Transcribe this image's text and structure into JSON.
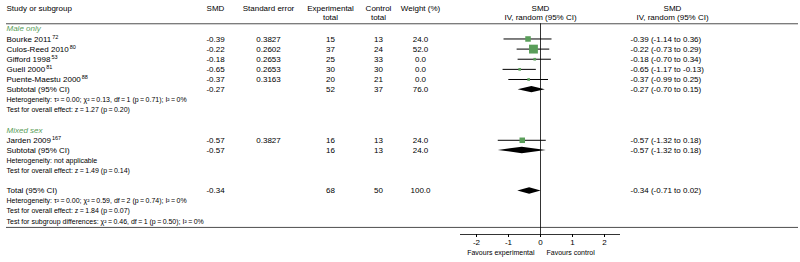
{
  "chart_data": {
    "type": "forest",
    "headers": [
      [
        "Study or subgroup"
      ],
      [
        "SMD"
      ],
      [
        "Standard error"
      ],
      [
        "Experimental",
        "total"
      ],
      [
        "Control",
        "total"
      ],
      [
        "Weight (%)"
      ],
      [
        "SMD",
        "IV, random (95% CI)"
      ],
      [
        "SMD",
        "IV, random (95% CI)"
      ]
    ],
    "color": "#5a9e5a",
    "subgroups": [
      {
        "name": "Male only",
        "color": "#5a9e5a",
        "studies": [
          {
            "name": "Bourke 2011",
            "superscript": "72",
            "smd": -0.39,
            "smd_label": "-0.39",
            "se": 0.3827,
            "exp_total": 15,
            "ctrl_total": 13,
            "weight": 24.0,
            "weight_label": "24.0",
            "ci_low": -1.14,
            "ci_high": 0.36,
            "ci_label": "-0.39 (-1.14 to 0.36)"
          },
          {
            "name": "Culos-Reed 2010",
            "superscript": "80",
            "smd": -0.22,
            "smd_label": "-0.22",
            "se": 0.2602,
            "exp_total": 37,
            "ctrl_total": 24,
            "weight": 52.0,
            "weight_label": "52.0",
            "ci_low": -0.73,
            "ci_high": 0.29,
            "ci_label": "-0.22 (-0.73 to 0.29)"
          },
          {
            "name": "Gifford 1998",
            "superscript": "53",
            "smd": -0.18,
            "smd_label": "-0.18",
            "se": 0.2653,
            "exp_total": 25,
            "ctrl_total": 33,
            "weight": 0.0,
            "weight_label": "0.0",
            "ci_low": -0.7,
            "ci_high": 0.34,
            "ci_label": "-0.18 (-0.70 to 0.34)"
          },
          {
            "name": "Guell 2000",
            "superscript": "81",
            "smd": -0.65,
            "smd_label": "-0.65",
            "se": 0.2653,
            "exp_total": 30,
            "ctrl_total": 30,
            "weight": 0.0,
            "weight_label": "0.0",
            "ci_low": -1.17,
            "ci_high": -0.13,
            "ci_label": "-0.65 (-1.17 to -0.13)"
          },
          {
            "name": "Puente-Maestu 2000",
            "superscript": "88",
            "smd": -0.37,
            "smd_label": "-0.37",
            "se": 0.3163,
            "exp_total": 20,
            "ctrl_total": 21,
            "weight": 0.0,
            "weight_label": "0.0",
            "ci_low": -0.99,
            "ci_high": 0.25,
            "ci_label": "-0.37 (-0.99 to 0.25)"
          }
        ],
        "subtotal": {
          "label": "Subtotal (95% CI)",
          "exp_total": 52,
          "ctrl_total": 37,
          "weight": 76.0,
          "weight_label": "76.0",
          "smd": -0.27,
          "smd_label": "-0.27",
          "ci_low": -0.7,
          "ci_high": 0.15,
          "ci_label": "-0.27 (-0.70 to 0.15)"
        },
        "heterogeneity": "Heterogeneity: τ² = 0.00; χ² = 0.13, df = 1 (p = 0.71); I² = 0%",
        "overall": "Test for overall effect: z = 1.27 (p = 0.20)"
      },
      {
        "name": "Mixed sex",
        "color": "#5a9e5a",
        "studies": [
          {
            "name": "Jarden 2009",
            "superscript": "167",
            "smd": -0.57,
            "smd_label": "-0.57",
            "se": 0.3827,
            "exp_total": 16,
            "ctrl_total": 13,
            "weight": 24.0,
            "weight_label": "24.0",
            "ci_low": -1.32,
            "ci_high": 0.18,
            "ci_label": "-0.57 (-1.32 to 0.18)"
          }
        ],
        "subtotal": {
          "label": "Subtotal (95% CI)",
          "exp_total": 16,
          "ctrl_total": 13,
          "weight": 24.0,
          "weight_label": "24.0",
          "smd": -0.57,
          "smd_label": "-0.57",
          "ci_low": -1.32,
          "ci_high": 0.18,
          "ci_label": "-0.57 (-1.32 to 0.18)"
        },
        "heterogeneity": "Heterogeneity: not applicable",
        "overall": "Test for overall effect: z = 1.49 (p = 0.14)"
      }
    ],
    "total": {
      "label": "Total (95% CI)",
      "exp_total": 68,
      "ctrl_total": 50,
      "weight": 100.0,
      "weight_label": "100.0",
      "smd": -0.34,
      "smd_label": "-0.34",
      "ci_low": -0.71,
      "ci_high": 0.02,
      "ci_label": "-0.34 (-0.71 to 0.02)"
    },
    "total_heterogeneity": "Heterogeneity: τ² = 0.00; χ² = 0.59, df = 2 (p = 0.74); I² = 0%",
    "total_overall": "Test for overall effect: z = 1.84 (p = 0.07)",
    "total_subgroup": "Test for subgroup differences: χ² = 0.46, df = 1 (p = 0.50); I² = 0%",
    "no_effect": 0,
    "xlim": [
      -2.5,
      2.5
    ],
    "xticks": [
      -2,
      -1,
      0,
      1,
      2
    ],
    "xlabel_left": "Favours experimental",
    "xlabel_right": "Favours control"
  }
}
